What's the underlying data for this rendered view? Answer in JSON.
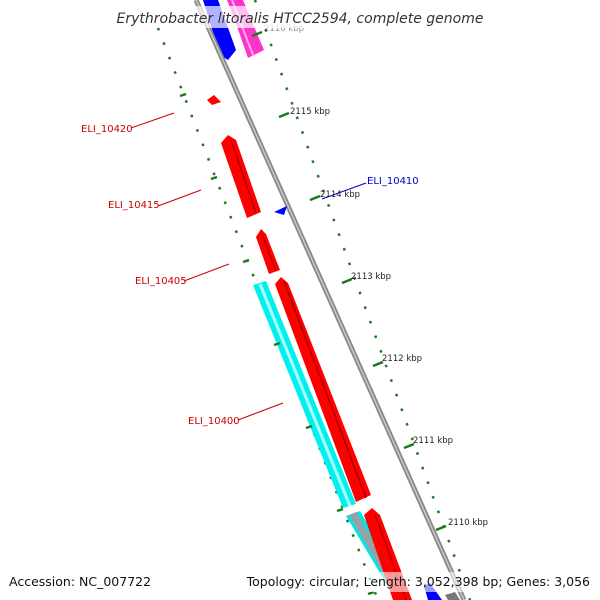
{
  "title": "Erythrobacter litoralis HTCC2594, complete genome",
  "footer": {
    "accession": "Accession: NC_007722",
    "summary": "Topology: circular; Length: 3,052,398 bp; Genes: 3,056"
  },
  "ticks": [
    "2116 kbp",
    "2115 kbp",
    "2114 kbp",
    "2113 kbp",
    "2112 kbp",
    "2111 kbp",
    "2110 kbp"
  ],
  "gene_labels": [
    {
      "text": "ELI_10420",
      "color": "#cc0000"
    },
    {
      "text": "ELI_10415",
      "color": "#cc0000"
    },
    {
      "text": "ELI_10410",
      "color": "#0000cc"
    },
    {
      "text": "ELI_10405",
      "color": "#cc0000"
    },
    {
      "text": "ELI_10400",
      "color": "#cc0000"
    }
  ],
  "colors": {
    "backbone": "#8a8a8a",
    "forward_cds": "#ff0000",
    "reverse_cds": "#0000ff",
    "gc_track": "#00f0f0",
    "pink_feature": "#ff33cc",
    "tick": "#1a7a1a",
    "label_red": "#cc0000",
    "label_blue": "#0000cc"
  }
}
